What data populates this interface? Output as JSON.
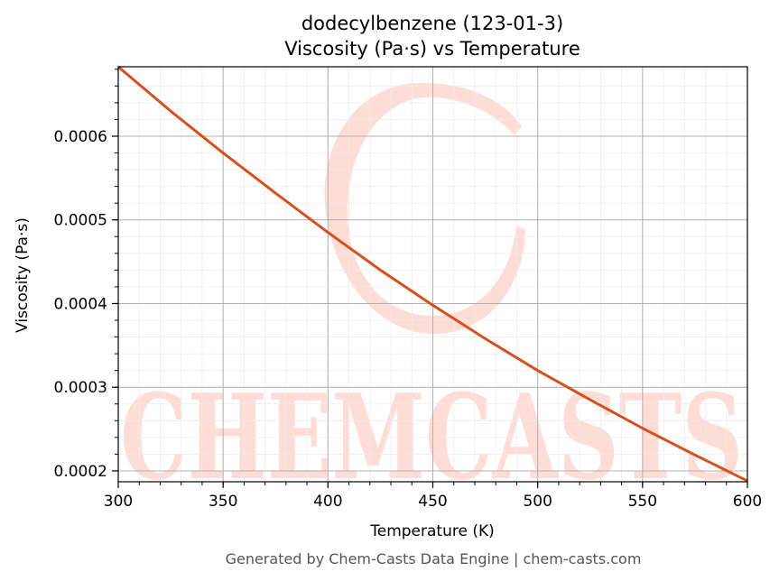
{
  "chart_data": {
    "type": "line",
    "title_line1": "dodecylbenzene (123-01-3)",
    "title_line2": "Viscosity (Pa·s) vs Temperature",
    "xlabel": "Temperature (K)",
    "ylabel": "Viscosity (Pa·s)",
    "xlim": [
      300,
      600
    ],
    "ylim": [
      0.000187,
      0.000683
    ],
    "xticks": [
      300,
      350,
      400,
      450,
      500,
      550,
      600
    ],
    "xtick_labels": [
      "300",
      "350",
      "400",
      "450",
      "500",
      "550",
      "600"
    ],
    "yticks": [
      0.0002,
      0.0003,
      0.0004,
      0.0005,
      0.0006
    ],
    "ytick_labels": [
      "0.0002",
      "0.0003",
      "0.0004",
      "0.0005",
      "0.0006"
    ],
    "grid": true,
    "series": [
      {
        "color": "#d4501e",
        "x": [
          300,
          325,
          350,
          375,
          400,
          425,
          450,
          475,
          500,
          525,
          550,
          575,
          600
        ],
        "y": [
          0.000683,
          0.00063,
          0.00058,
          0.000532,
          0.000485,
          0.00044,
          0.000398,
          0.000358,
          0.00032,
          0.000285,
          0.000251,
          0.000219,
          0.000188
        ]
      }
    ]
  },
  "watermark": {
    "text": "CHEMCASTS",
    "color": "#ffd9d2"
  },
  "footer": "Generated by Chem-Casts Data Engine | chem-casts.com"
}
